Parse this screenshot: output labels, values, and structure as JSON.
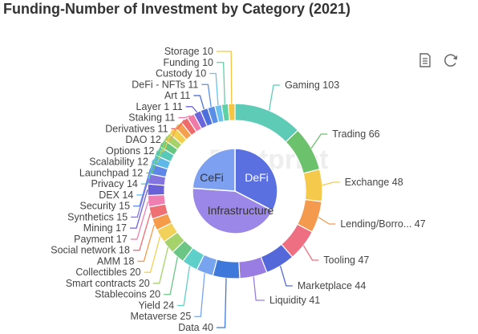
{
  "title": "Funding-Number of Investment by Category  (2021)",
  "watermark": "Footprint",
  "toolbar": {
    "icons": [
      "data-view-icon",
      "restore-icon"
    ]
  },
  "chart_data": {
    "type": "pie",
    "title": "Funding-Number of Investment by Category  (2021)",
    "inner": [
      {
        "name": "DeFi",
        "color": "#5a6fe0"
      },
      {
        "name": "Infrastructure",
        "color": "#9b87e8"
      },
      {
        "name": "CeFi",
        "color": "#7ea0f0"
      }
    ],
    "outer": [
      {
        "name": "Gaming",
        "value": 103,
        "color": "#5ecbb7"
      },
      {
        "name": "Trading",
        "value": 66,
        "color": "#6cc16c"
      },
      {
        "name": "Exchange",
        "value": 48,
        "color": "#f4c94c"
      },
      {
        "name": "Lending/Borro...",
        "value": 47,
        "color": "#f39a4e"
      },
      {
        "name": "Tooling",
        "value": 47,
        "color": "#ee6e82"
      },
      {
        "name": "Marketplace",
        "value": 44,
        "color": "#5468d9"
      },
      {
        "name": "Liquidity",
        "value": 41,
        "color": "#9a7de3"
      },
      {
        "name": "Data",
        "value": 40,
        "color": "#3f78db"
      },
      {
        "name": "Metaverse",
        "value": 25,
        "color": "#78a4ef"
      },
      {
        "name": "Yield",
        "value": 24,
        "color": "#5fcfc9"
      },
      {
        "name": "Stablecoins",
        "value": 20,
        "color": "#6bc686"
      },
      {
        "name": "Smart contracts",
        "value": 20,
        "color": "#a6d26b"
      },
      {
        "name": "Collectibles",
        "value": 20,
        "color": "#f2d15a"
      },
      {
        "name": "AMM",
        "value": 18,
        "color": "#f59b4a"
      },
      {
        "name": "Social network",
        "value": 18,
        "color": "#ee6f74"
      },
      {
        "name": "Payment",
        "value": 17,
        "color": "#ee7fb0"
      },
      {
        "name": "Mining",
        "value": 17,
        "color": "#6a61d8"
      },
      {
        "name": "Synthetics",
        "value": 15,
        "color": "#8474e0"
      },
      {
        "name": "Security",
        "value": 15,
        "color": "#5d86e6"
      },
      {
        "name": "DEX",
        "value": 14,
        "color": "#5fb9e8"
      },
      {
        "name": "Privacy",
        "value": 14,
        "color": "#58c8bb"
      },
      {
        "name": "Launchpad",
        "value": 12,
        "color": "#66c57e"
      },
      {
        "name": "Scalability",
        "value": 12,
        "color": "#a7d36a"
      },
      {
        "name": "Options",
        "value": 12,
        "color": "#f3cf4e"
      },
      {
        "name": "DAO",
        "value": 12,
        "color": "#f5a04f"
      },
      {
        "name": "Derivatives",
        "value": 11,
        "color": "#ef6b6b"
      },
      {
        "name": "Staking",
        "value": 11,
        "color": "#ef7aa7"
      },
      {
        "name": "Layer 1",
        "value": 11,
        "color": "#6b66dc"
      },
      {
        "name": "Art",
        "value": 11,
        "color": "#4d6fdc"
      },
      {
        "name": "DeFi - NFTs",
        "value": 11,
        "color": "#5a8fe8"
      },
      {
        "name": "Custody",
        "value": 10,
        "color": "#6cc0ec"
      },
      {
        "name": "Funding",
        "value": 10,
        "color": "#5fd1a7"
      },
      {
        "name": "Storage",
        "value": 10,
        "color": "#f3c542"
      }
    ]
  }
}
